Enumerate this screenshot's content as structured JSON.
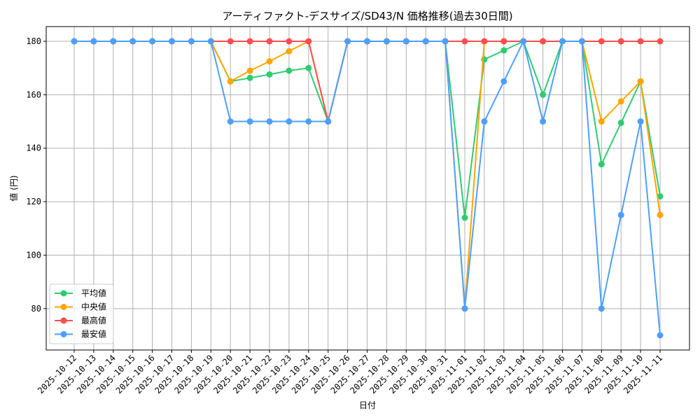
{
  "chart_data": {
    "type": "line",
    "title": "アーティファクト-デスサイズ/SD43/N 価格推移(過去30日間)",
    "xlabel": "日付",
    "ylabel": "値 (円)",
    "ylim": [
      64.5,
      185.5
    ],
    "yticks": [
      80,
      100,
      120,
      140,
      160,
      180
    ],
    "grid": true,
    "legend_position": "lower-left",
    "categories": [
      "2025-10-12",
      "2025-10-13",
      "2025-10-14",
      "2025-10-15",
      "2025-10-16",
      "2025-10-17",
      "2025-10-18",
      "2025-10-19",
      "2025-10-20",
      "2025-10-21",
      "2025-10-22",
      "2025-10-23",
      "2025-10-24",
      "2025-10-25",
      "2025-10-26",
      "2025-10-27",
      "2025-10-28",
      "2025-10-29",
      "2025-10-30",
      "2025-10-31",
      "2025-11-01",
      "2025-11-02",
      "2025-11-03",
      "2025-11-04",
      "2025-11-05",
      "2025-11-06",
      "2025-11-07",
      "2025-11-08",
      "2025-11-09",
      "2025-11-10",
      "2025-11-11"
    ],
    "series": [
      {
        "name": "平均値",
        "color": "#2ecc71",
        "values": [
          180,
          180,
          180,
          180,
          180,
          180,
          180,
          180,
          165,
          166.3,
          167.6,
          169,
          170,
          150,
          180,
          180,
          180,
          180,
          180,
          180,
          114,
          173.2,
          176.6,
          180,
          160,
          180,
          180,
          134,
          149.5,
          165,
          122
        ]
      },
      {
        "name": "中央値",
        "color": "#ffa500",
        "values": [
          180,
          180,
          180,
          180,
          180,
          180,
          180,
          180,
          165,
          169,
          172.5,
          176.3,
          180,
          150,
          180,
          180,
          180,
          180,
          180,
          180,
          80,
          180,
          180,
          180,
          180,
          180,
          180,
          150,
          157.5,
          165,
          115
        ]
      },
      {
        "name": "最高値",
        "color": "#ff4d4d",
        "values": [
          180,
          180,
          180,
          180,
          180,
          180,
          180,
          180,
          180,
          180,
          180,
          180,
          180,
          150,
          180,
          180,
          180,
          180,
          180,
          180,
          180,
          180,
          180,
          180,
          180,
          180,
          180,
          180,
          180,
          180,
          180
        ]
      },
      {
        "name": "最安値",
        "color": "#4d9fff",
        "values": [
          180,
          180,
          180,
          180,
          180,
          180,
          180,
          180,
          150,
          150,
          150,
          150,
          150,
          150,
          180,
          180,
          180,
          180,
          180,
          180,
          80,
          150,
          165,
          180,
          150,
          180,
          180,
          80,
          115,
          150,
          70
        ]
      }
    ]
  }
}
